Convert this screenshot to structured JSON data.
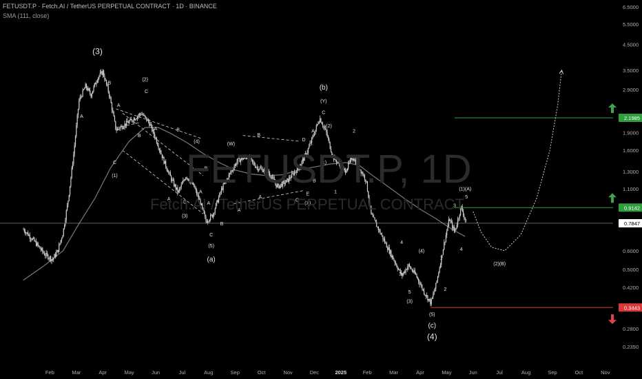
{
  "header": {
    "title": "FETUSDT.P · Fetch.AI / TetherUS PERPETUAL CONTRACT · 1D · BINANCE",
    "indicator": "SMA (111, close)"
  },
  "watermark": {
    "symbol": "FETUSDT.P, 1D",
    "name": "Fetch.AI / TetherUS PERPETUAL CONTRACT"
  },
  "colors": {
    "background": "#000000",
    "candles": "#cfcfcf",
    "sma": "#7a7a7a",
    "target_line": "#2e9e3e",
    "stop_line": "#d83a3a",
    "current_price_line": "#9a9a9a",
    "up_arrow": "#3fa34d",
    "down_arrow": "#e0414f"
  },
  "chart_data": {
    "type": "line",
    "y_scale": "log",
    "ylim": [
      0.22,
      6.7
    ],
    "y_ticks": [
      {
        "value": 6.5,
        "label": "6.5000"
      },
      {
        "value": 5.5,
        "label": "5.5000"
      },
      {
        "value": 4.5,
        "label": "4.5000"
      },
      {
        "value": 3.5,
        "label": "3.5000"
      },
      {
        "value": 2.9,
        "label": "2.9000"
      },
      {
        "value": 1.9,
        "label": "1.9000"
      },
      {
        "value": 1.6,
        "label": "1.6000"
      },
      {
        "value": 1.3,
        "label": "1.3000"
      },
      {
        "value": 1.1,
        "label": "1.1000"
      },
      {
        "value": 0.6,
        "label": "0.6000"
      },
      {
        "value": 0.5,
        "label": "0.5000"
      },
      {
        "value": 0.42,
        "label": "0.4200"
      },
      {
        "value": 0.28,
        "label": "0.2800"
      },
      {
        "value": 0.235,
        "label": "0.2350"
      }
    ],
    "x_ticks": [
      {
        "t": 1,
        "label": "Feb"
      },
      {
        "t": 2,
        "label": "Mar"
      },
      {
        "t": 3,
        "label": "Apr"
      },
      {
        "t": 4,
        "label": "May"
      },
      {
        "t": 5,
        "label": "Jun"
      },
      {
        "t": 6,
        "label": "Jul"
      },
      {
        "t": 7,
        "label": "Aug"
      },
      {
        "t": 8,
        "label": "Sep"
      },
      {
        "t": 9,
        "label": "Oct"
      },
      {
        "t": 10,
        "label": "Nov"
      },
      {
        "t": 11,
        "label": "Dec"
      },
      {
        "t": 12,
        "label": "2025"
      },
      {
        "t": 13,
        "label": "Feb"
      },
      {
        "t": 14,
        "label": "Mar"
      },
      {
        "t": 15,
        "label": "Apr"
      },
      {
        "t": 16,
        "label": "May"
      },
      {
        "t": 17,
        "label": "Jun"
      },
      {
        "t": 18,
        "label": "Jul"
      },
      {
        "t": 19,
        "label": "Aug"
      },
      {
        "t": 20,
        "label": "Sep"
      },
      {
        "t": 21,
        "label": "Oct"
      },
      {
        "t": 22,
        "label": "Nov"
      }
    ],
    "price_path": [
      [
        0.0,
        0.74
      ],
      [
        0.4,
        0.66
      ],
      [
        0.8,
        0.58
      ],
      [
        1.1,
        0.55
      ],
      [
        1.3,
        0.6
      ],
      [
        1.5,
        0.72
      ],
      [
        1.7,
        1.0
      ],
      [
        1.9,
        1.55
      ],
      [
        2.1,
        2.6
      ],
      [
        2.35,
        3.0
      ],
      [
        2.55,
        2.75
      ],
      [
        2.8,
        3.25
      ],
      [
        3.0,
        3.45
      ],
      [
        3.25,
        2.75
      ],
      [
        3.5,
        1.95
      ],
      [
        3.8,
        2.05
      ],
      [
        4.1,
        2.15
      ],
      [
        4.45,
        2.3
      ],
      [
        4.75,
        2.1
      ],
      [
        5.0,
        1.8
      ],
      [
        5.3,
        1.45
      ],
      [
        5.6,
        1.2
      ],
      [
        5.85,
        1.06
      ],
      [
        6.15,
        1.25
      ],
      [
        6.45,
        1.12
      ],
      [
        6.7,
        0.95
      ],
      [
        6.9,
        0.8
      ],
      [
        7.15,
        0.85
      ],
      [
        7.5,
        1.1
      ],
      [
        7.85,
        1.3
      ],
      [
        8.1,
        1.45
      ],
      [
        8.45,
        1.5
      ],
      [
        8.85,
        1.35
      ],
      [
        9.25,
        1.3
      ],
      [
        9.6,
        1.12
      ],
      [
        9.95,
        1.18
      ],
      [
        10.4,
        1.35
      ],
      [
        10.7,
        1.55
      ],
      [
        11.0,
        1.9
      ],
      [
        11.2,
        2.2
      ],
      [
        11.45,
        1.9
      ],
      [
        11.7,
        1.5
      ],
      [
        11.95,
        1.4
      ],
      [
        12.15,
        1.3
      ],
      [
        12.45,
        1.5
      ],
      [
        12.7,
        1.35
      ],
      [
        12.95,
        1.2
      ],
      [
        13.15,
        0.85
      ],
      [
        13.4,
        0.75
      ],
      [
        13.7,
        0.64
      ],
      [
        14.0,
        0.55
      ],
      [
        14.3,
        0.47
      ],
      [
        14.55,
        0.52
      ],
      [
        14.85,
        0.47
      ],
      [
        15.15,
        0.4
      ],
      [
        15.4,
        0.36
      ],
      [
        15.6,
        0.43
      ],
      [
        15.85,
        0.6
      ],
      [
        16.1,
        0.82
      ],
      [
        16.3,
        0.72
      ],
      [
        16.55,
        0.92
      ],
      [
        16.75,
        0.78
      ]
    ],
    "sma_path": [
      [
        0.0,
        0.45
      ],
      [
        0.8,
        0.52
      ],
      [
        1.5,
        0.6
      ],
      [
        2.1,
        0.78
      ],
      [
        2.7,
        1.0
      ],
      [
        3.3,
        1.35
      ],
      [
        4.0,
        1.75
      ],
      [
        4.6,
        2.0
      ],
      [
        5.1,
        2.0
      ],
      [
        5.6,
        1.88
      ],
      [
        6.2,
        1.72
      ],
      [
        6.8,
        1.55
      ],
      [
        7.4,
        1.42
      ],
      [
        8.0,
        1.32
      ],
      [
        8.6,
        1.27
      ],
      [
        9.2,
        1.25
      ],
      [
        9.8,
        1.26
      ],
      [
        10.4,
        1.32
      ],
      [
        11.0,
        1.36
      ],
      [
        11.6,
        1.4
      ],
      [
        12.2,
        1.42
      ],
      [
        12.7,
        1.38
      ],
      [
        13.2,
        1.25
      ],
      [
        13.8,
        1.12
      ],
      [
        14.4,
        1.0
      ],
      [
        15.0,
        0.9
      ],
      [
        15.6,
        0.82
      ],
      [
        16.2,
        0.74
      ],
      [
        16.7,
        0.69
      ]
    ],
    "projection": [
      [
        17.0,
        0.88
      ],
      [
        17.3,
        0.72
      ],
      [
        17.7,
        0.62
      ],
      [
        18.2,
        0.6
      ],
      [
        18.8,
        0.7
      ],
      [
        19.4,
        1.0
      ],
      [
        19.9,
        1.6
      ],
      [
        20.2,
        2.5
      ],
      [
        20.35,
        3.5
      ]
    ],
    "levels": {
      "target2": {
        "value": 2.1985,
        "label": "2.1985",
        "color": "#2e9e3e"
      },
      "target1": {
        "value": 0.9142,
        "label": "0.9142",
        "color": "#2e9e3e"
      },
      "current": {
        "value": 0.7847,
        "label": "0.7847",
        "color": "#9a9a9a"
      },
      "stop": {
        "value": 0.3443,
        "label": "0.3443",
        "color": "#d83a3a"
      }
    },
    "channels": [
      [
        [
          3.75,
          2.3
        ],
        [
          6.8,
          1.25
        ]
      ],
      [
        [
          3.75,
          1.6
        ],
        [
          6.8,
          0.86
        ]
      ],
      [
        [
          3.5,
          2.4
        ],
        [
          6.7,
          1.8
        ]
      ],
      [
        [
          3.55,
          2.0
        ],
        [
          4.4,
          2.1
        ]
      ],
      [
        [
          8.3,
          1.85
        ],
        [
          10.4,
          1.75
        ]
      ],
      [
        [
          7.95,
          0.95
        ],
        [
          10.6,
          1.08
        ]
      ]
    ],
    "wave_labels": [
      {
        "text": "(3)",
        "t": 2.8,
        "v": 4.1,
        "size": 12
      },
      {
        "text": "B",
        "t": 3.25,
        "v": 3.05,
        "size": 7
      },
      {
        "text": "A",
        "t": 2.2,
        "v": 2.2,
        "size": 7
      },
      {
        "text": "A",
        "t": 3.6,
        "v": 2.45,
        "size": 7
      },
      {
        "text": "(2)",
        "t": 4.6,
        "v": 3.15,
        "size": 7
      },
      {
        "text": "C",
        "t": 4.65,
        "v": 2.8,
        "size": 7
      },
      {
        "text": "B",
        "t": 4.38,
        "v": 1.82,
        "size": 7
      },
      {
        "text": "A",
        "t": 5.0,
        "v": 1.95,
        "size": 7
      },
      {
        "text": "B",
        "t": 5.85,
        "v": 1.93,
        "size": 7
      },
      {
        "text": "C",
        "t": 3.45,
        "v": 1.4,
        "size": 7
      },
      {
        "text": "(1)",
        "t": 3.45,
        "v": 1.23,
        "size": 7
      },
      {
        "text": "(4)",
        "t": 6.55,
        "v": 1.72,
        "size": 7
      },
      {
        "text": "B",
        "t": 6.9,
        "v": 1.32,
        "size": 7
      },
      {
        "text": "A",
        "t": 5.5,
        "v": 0.98,
        "size": 7
      },
      {
        "text": "C",
        "t": 6.1,
        "v": 0.95,
        "size": 7
      },
      {
        "text": "(3)",
        "t": 6.1,
        "v": 0.83,
        "size": 7
      },
      {
        "text": "A",
        "t": 6.7,
        "v": 1.05,
        "size": 7
      },
      {
        "text": "A",
        "t": 7.0,
        "v": 0.94,
        "size": 7
      },
      {
        "text": "B",
        "t": 7.5,
        "v": 0.77,
        "size": 7
      },
      {
        "text": "C",
        "t": 7.1,
        "v": 0.69,
        "size": 7
      },
      {
        "text": "(5)",
        "t": 7.1,
        "v": 0.62,
        "size": 7
      },
      {
        "text": "(a)",
        "t": 7.1,
        "v": 0.54,
        "size": 10
      },
      {
        "text": "(W)",
        "t": 7.85,
        "v": 1.68,
        "size": 7
      },
      {
        "text": "A",
        "t": 8.15,
        "v": 0.88,
        "size": 7
      },
      {
        "text": "B",
        "t": 8.9,
        "v": 1.83,
        "size": 7
      },
      {
        "text": "A",
        "t": 8.95,
        "v": 1.0,
        "size": 7
      },
      {
        "text": "C",
        "t": 10.35,
        "v": 0.97,
        "size": 7
      },
      {
        "text": "E",
        "t": 10.75,
        "v": 1.03,
        "size": 7
      },
      {
        "text": "(X)",
        "t": 10.75,
        "v": 0.94,
        "size": 7
      },
      {
        "text": "B",
        "t": 11.0,
        "v": 1.17,
        "size": 7
      },
      {
        "text": "D",
        "t": 10.6,
        "v": 1.75,
        "size": 7
      },
      {
        "text": "A",
        "t": 10.95,
        "v": 1.9,
        "size": 7
      },
      {
        "text": "(b)",
        "t": 11.35,
        "v": 2.9,
        "size": 10
      },
      {
        "text": "(Y)",
        "t": 11.35,
        "v": 2.55,
        "size": 7
      },
      {
        "text": "C",
        "t": 11.35,
        "v": 2.28,
        "size": 7
      },
      {
        "text": "(2)",
        "t": 11.55,
        "v": 2.0,
        "size": 7
      },
      {
        "text": "(1)",
        "t": 11.35,
        "v": 1.4,
        "size": 7
      },
      {
        "text": "1",
        "t": 11.8,
        "v": 1.05,
        "size": 7
      },
      {
        "text": "2",
        "t": 12.5,
        "v": 1.9,
        "size": 7
      },
      {
        "text": "4",
        "t": 14.3,
        "v": 0.64,
        "size": 7
      },
      {
        "text": "3",
        "t": 14.25,
        "v": 0.47,
        "size": 7
      },
      {
        "text": "(4)",
        "t": 15.05,
        "v": 0.59,
        "size": 7
      },
      {
        "text": "5",
        "t": 14.6,
        "v": 0.395,
        "size": 7
      },
      {
        "text": "(3)",
        "t": 14.6,
        "v": 0.36,
        "size": 7
      },
      {
        "text": "1",
        "t": 15.8,
        "v": 0.55,
        "size": 7
      },
      {
        "text": "2",
        "t": 15.95,
        "v": 0.405,
        "size": 7
      },
      {
        "text": "3",
        "t": 16.3,
        "v": 0.92,
        "size": 7
      },
      {
        "text": "4",
        "t": 16.55,
        "v": 0.6,
        "size": 7
      },
      {
        "text": "5",
        "t": 16.75,
        "v": 1.0,
        "size": 7
      },
      {
        "text": "(1)(A)",
        "t": 16.7,
        "v": 1.08,
        "size": 7
      },
      {
        "text": "(5)",
        "t": 15.45,
        "v": 0.317,
        "size": 7
      },
      {
        "text": "(c)",
        "t": 15.45,
        "v": 0.283,
        "size": 10
      },
      {
        "text": "(4)",
        "t": 15.45,
        "v": 0.252,
        "size": 12
      },
      {
        "text": "(2)(B)",
        "t": 18.0,
        "v": 0.52,
        "size": 7
      }
    ]
  }
}
